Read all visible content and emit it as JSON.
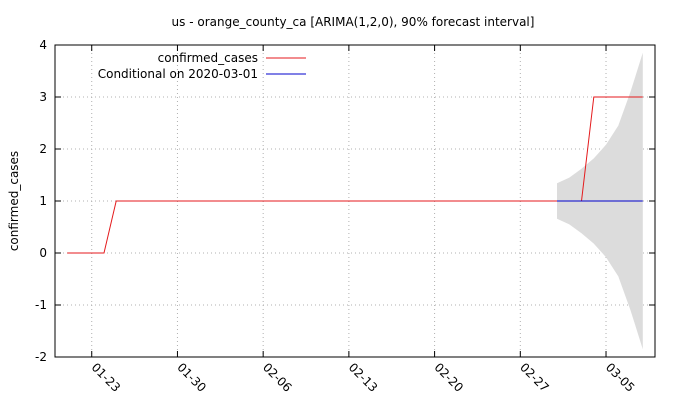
{
  "chart_data": {
    "type": "line",
    "title": "us - orange_county_ca [ARIMA(1,2,0), 90% forecast interval]",
    "xlabel": "",
    "ylabel": "confirmed_cases",
    "ylim": [
      -2,
      4
    ],
    "yticks": [
      "-2",
      "-1",
      "0",
      "1",
      "2",
      "3",
      "4"
    ],
    "xlim": [
      "2020-01-20",
      "2020-03-09"
    ],
    "xticks": [
      {
        "date": "2020-01-23",
        "label": "01-23"
      },
      {
        "date": "2020-01-30",
        "label": "01-30"
      },
      {
        "date": "2020-02-06",
        "label": "02-06"
      },
      {
        "date": "2020-02-13",
        "label": "02-13"
      },
      {
        "date": "2020-02-20",
        "label": "02-20"
      },
      {
        "date": "2020-02-27",
        "label": "02-27"
      },
      {
        "date": "2020-03-05",
        "label": "03-05"
      }
    ],
    "grid": true,
    "legend_position": "top-left",
    "series": [
      {
        "name": "confirmed_cases",
        "color": "#e41a1c",
        "points": [
          [
            "2020-01-21",
            0
          ],
          [
            "2020-01-22",
            0
          ],
          [
            "2020-01-23",
            0
          ],
          [
            "2020-01-24",
            0
          ],
          [
            "2020-01-25",
            1
          ],
          [
            "2020-01-26",
            1
          ],
          [
            "2020-01-27",
            1
          ],
          [
            "2020-01-28",
            1
          ],
          [
            "2020-01-29",
            1
          ],
          [
            "2020-01-30",
            1
          ],
          [
            "2020-01-31",
            1
          ],
          [
            "2020-02-01",
            1
          ],
          [
            "2020-02-02",
            1
          ],
          [
            "2020-02-03",
            1
          ],
          [
            "2020-02-04",
            1
          ],
          [
            "2020-02-05",
            1
          ],
          [
            "2020-02-06",
            1
          ],
          [
            "2020-02-07",
            1
          ],
          [
            "2020-02-08",
            1
          ],
          [
            "2020-02-09",
            1
          ],
          [
            "2020-02-10",
            1
          ],
          [
            "2020-02-11",
            1
          ],
          [
            "2020-02-12",
            1
          ],
          [
            "2020-02-13",
            1
          ],
          [
            "2020-02-14",
            1
          ],
          [
            "2020-02-15",
            1
          ],
          [
            "2020-02-16",
            1
          ],
          [
            "2020-02-17",
            1
          ],
          [
            "2020-02-18",
            1
          ],
          [
            "2020-02-19",
            1
          ],
          [
            "2020-02-20",
            1
          ],
          [
            "2020-02-21",
            1
          ],
          [
            "2020-02-22",
            1
          ],
          [
            "2020-02-23",
            1
          ],
          [
            "2020-02-24",
            1
          ],
          [
            "2020-02-25",
            1
          ],
          [
            "2020-02-26",
            1
          ],
          [
            "2020-02-27",
            1
          ],
          [
            "2020-02-28",
            1
          ],
          [
            "2020-02-29",
            1
          ],
          [
            "2020-03-01",
            1
          ],
          [
            "2020-03-02",
            1
          ],
          [
            "2020-03-03",
            1
          ],
          [
            "2020-03-04",
            3
          ],
          [
            "2020-03-05",
            3
          ],
          [
            "2020-03-06",
            3
          ],
          [
            "2020-03-07",
            3
          ],
          [
            "2020-03-08",
            3
          ]
        ]
      },
      {
        "name": "Conditional on 2020-03-01",
        "color": "#0000cc",
        "points": [
          [
            "2020-03-01",
            1
          ],
          [
            "2020-03-02",
            1
          ],
          [
            "2020-03-03",
            1
          ],
          [
            "2020-03-04",
            1
          ],
          [
            "2020-03-05",
            1
          ],
          [
            "2020-03-06",
            1
          ],
          [
            "2020-03-07",
            1
          ],
          [
            "2020-03-08",
            1
          ]
        ]
      }
    ],
    "interval": {
      "color": "#dcdcdc",
      "points": [
        [
          "2020-03-01",
          0.66,
          1.34
        ],
        [
          "2020-03-02",
          0.55,
          1.45
        ],
        [
          "2020-03-03",
          0.38,
          1.62
        ],
        [
          "2020-03-04",
          0.18,
          1.82
        ],
        [
          "2020-03-05",
          -0.08,
          2.08
        ],
        [
          "2020-03-06",
          -0.45,
          2.45
        ],
        [
          "2020-03-07",
          -1.1,
          3.1
        ],
        [
          "2020-03-08",
          -1.85,
          3.85
        ]
      ]
    }
  }
}
